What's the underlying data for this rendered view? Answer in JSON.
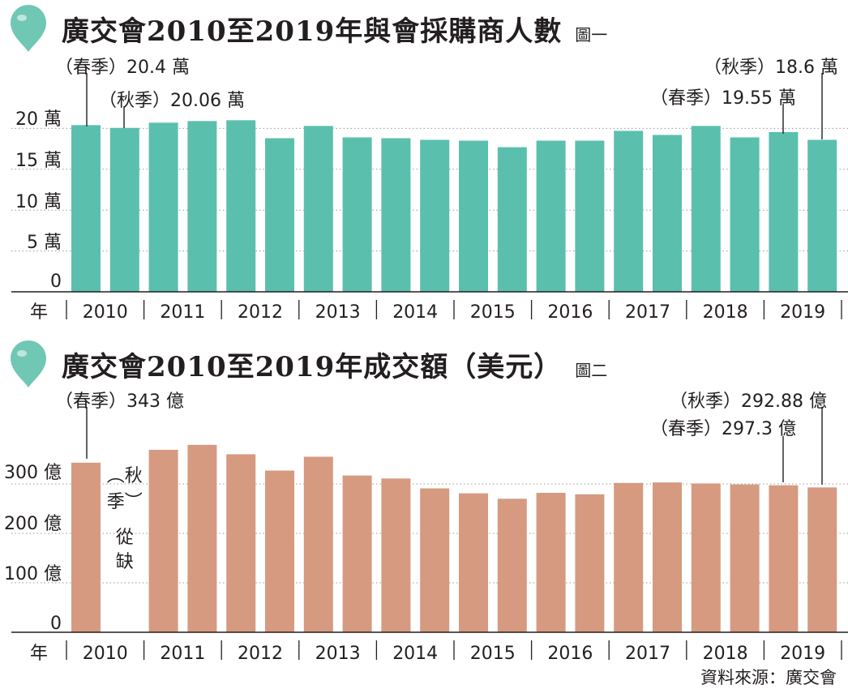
{
  "chart_data": [
    {
      "type": "bar",
      "title": "廣交會2010至2019年與會採購商人數",
      "figure_label": "圖一",
      "x_axis_label": "年",
      "years": [
        "2010",
        "2011",
        "2012",
        "2013",
        "2014",
        "2015",
        "2016",
        "2017",
        "2018",
        "2019"
      ],
      "y_ticks": [
        "0",
        "5 萬",
        "10 萬",
        "15 萬",
        "20 萬"
      ],
      "ylim": [
        0,
        21.5
      ],
      "unit": "萬",
      "bars": [
        {
          "year": "2010",
          "season": "春季",
          "value": 20.4
        },
        {
          "year": "2010",
          "season": "秋季",
          "value": 20.06
        },
        {
          "year": "2011",
          "season": "春季",
          "value": 20.7
        },
        {
          "year": "2011",
          "season": "秋季",
          "value": 20.9
        },
        {
          "year": "2012",
          "season": "春季",
          "value": 21.0
        },
        {
          "year": "2012",
          "season": "秋季",
          "value": 18.8
        },
        {
          "year": "2013",
          "season": "春季",
          "value": 20.3
        },
        {
          "year": "2013",
          "season": "秋季",
          "value": 18.9
        },
        {
          "year": "2014",
          "season": "春季",
          "value": 18.8
        },
        {
          "year": "2014",
          "season": "秋季",
          "value": 18.6
        },
        {
          "year": "2015",
          "season": "春季",
          "value": 18.5
        },
        {
          "year": "2015",
          "season": "秋季",
          "value": 17.7
        },
        {
          "year": "2016",
          "season": "春季",
          "value": 18.5
        },
        {
          "year": "2016",
          "season": "秋季",
          "value": 18.5
        },
        {
          "year": "2017",
          "season": "春季",
          "value": 19.7
        },
        {
          "year": "2017",
          "season": "秋季",
          "value": 19.2
        },
        {
          "year": "2018",
          "season": "春季",
          "value": 20.3
        },
        {
          "year": "2018",
          "season": "秋季",
          "value": 18.9
        },
        {
          "year": "2019",
          "season": "春季",
          "value": 19.55
        },
        {
          "year": "2019",
          "season": "秋季",
          "value": 18.6
        }
      ],
      "annotations": [
        {
          "bar_index": 0,
          "text": "（春季）20.4 萬"
        },
        {
          "bar_index": 1,
          "text": "（秋季）20.06 萬"
        },
        {
          "bar_index": 18,
          "text": "（春季）19.55 萬"
        },
        {
          "bar_index": 19,
          "text": "（秋季）18.6 萬"
        }
      ],
      "colors": {
        "bar": "#5bbfae",
        "drop": "#6fc7b4"
      }
    },
    {
      "type": "bar",
      "title": "廣交會2010至2019年成交額（美元）",
      "figure_label": "圖二",
      "x_axis_label": "年",
      "years": [
        "2010",
        "2011",
        "2012",
        "2013",
        "2014",
        "2015",
        "2016",
        "2017",
        "2018",
        "2019"
      ],
      "y_ticks": [
        "0",
        "100 億",
        "200 億",
        "300 億"
      ],
      "ylim": [
        0,
        385
      ],
      "unit": "億",
      "bars": [
        {
          "year": "2010",
          "season": "春季",
          "value": 343
        },
        {
          "year": "2010",
          "season": "秋季",
          "value": null
        },
        {
          "year": "2011",
          "season": "春季",
          "value": 369
        },
        {
          "year": "2011",
          "season": "秋季",
          "value": 379
        },
        {
          "year": "2012",
          "season": "春季",
          "value": 360
        },
        {
          "year": "2012",
          "season": "秋季",
          "value": 327
        },
        {
          "year": "2013",
          "season": "春季",
          "value": 355
        },
        {
          "year": "2013",
          "season": "秋季",
          "value": 317
        },
        {
          "year": "2014",
          "season": "春季",
          "value": 311
        },
        {
          "year": "2014",
          "season": "秋季",
          "value": 291
        },
        {
          "year": "2015",
          "season": "春季",
          "value": 281
        },
        {
          "year": "2015",
          "season": "秋季",
          "value": 270
        },
        {
          "year": "2016",
          "season": "春季",
          "value": 282
        },
        {
          "year": "2016",
          "season": "秋季",
          "value": 279
        },
        {
          "year": "2017",
          "season": "春季",
          "value": 302
        },
        {
          "year": "2017",
          "season": "秋季",
          "value": 303
        },
        {
          "year": "2018",
          "season": "春季",
          "value": 301
        },
        {
          "year": "2018",
          "season": "秋季",
          "value": 299
        },
        {
          "year": "2019",
          "season": "春季",
          "value": 297.3
        },
        {
          "year": "2019",
          "season": "秋季",
          "value": 292.88
        }
      ],
      "missing_note_lines": [
        "︵秋",
        "季︶",
        "從",
        "缺"
      ],
      "annotations": [
        {
          "bar_index": 0,
          "text": "（春季）343 億"
        },
        {
          "bar_index": 18,
          "text": "（春季）297.3 億"
        },
        {
          "bar_index": 19,
          "text": "（秋季）292.88 億"
        }
      ],
      "colors": {
        "bar": "#d59a80",
        "drop": "#6fc7b4"
      }
    }
  ],
  "source": "資料來源：廣交會"
}
